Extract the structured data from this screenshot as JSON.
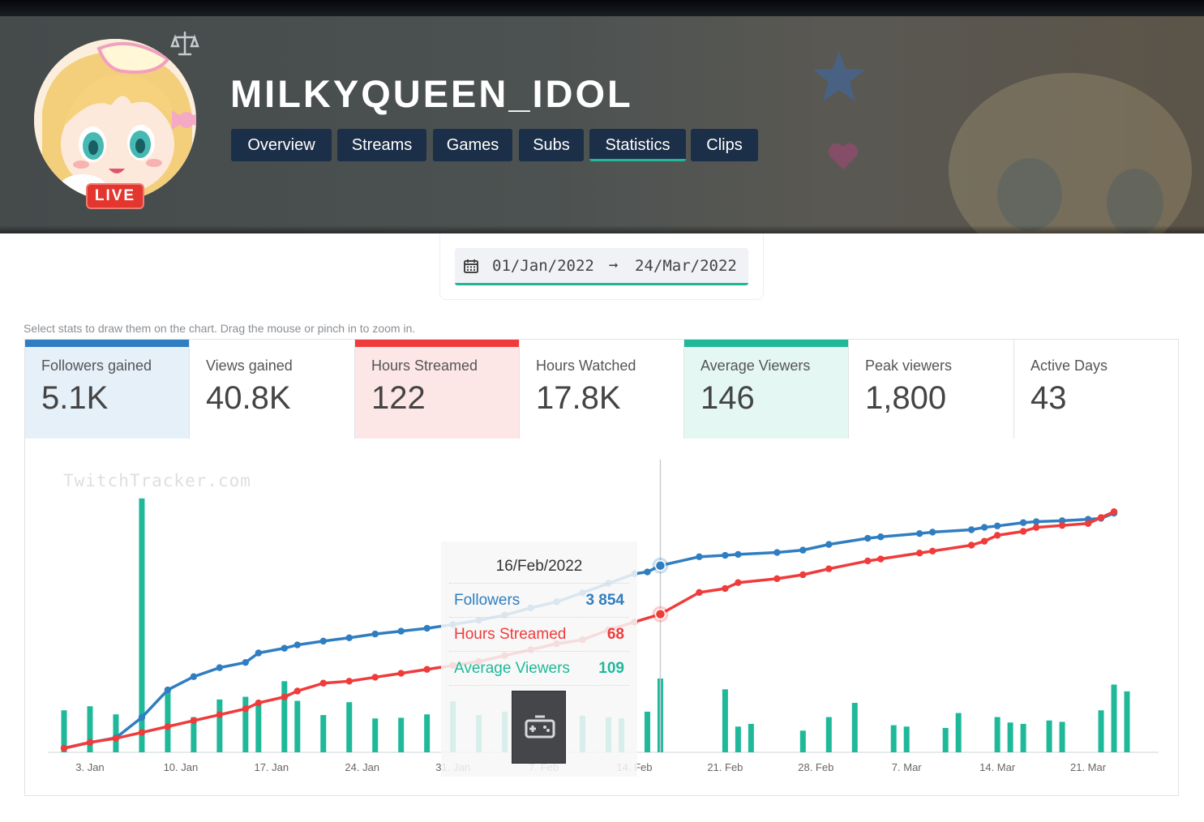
{
  "channel": {
    "name": "MILKYQUEEN_IDOL",
    "live_label": "LIVE"
  },
  "tabs": [
    {
      "label": "Overview",
      "active": false
    },
    {
      "label": "Streams",
      "active": false
    },
    {
      "label": "Games",
      "active": false
    },
    {
      "label": "Subs",
      "active": false
    },
    {
      "label": "Statistics",
      "active": true
    },
    {
      "label": "Clips",
      "active": false
    }
  ],
  "date_range": {
    "from": "01/Jan/2022",
    "arrow": "➞",
    "to": "24/Mar/2022"
  },
  "hint": "Select stats to draw them on the chart. Drag the mouse or pinch in to zoom in.",
  "stats": [
    {
      "label": "Followers gained",
      "value": "5.1K",
      "selected": true,
      "color": "#2f7ec1",
      "bg": "#e6f0f9"
    },
    {
      "label": "Views gained",
      "value": "40.8K",
      "selected": false,
      "color": "",
      "bg": "#ffffff"
    },
    {
      "label": "Hours Streamed",
      "value": "122",
      "selected": true,
      "color": "#f03b3b",
      "bg": "#fde6e6"
    },
    {
      "label": "Hours Watched",
      "value": "17.8K",
      "selected": false,
      "color": "",
      "bg": "#ffffff"
    },
    {
      "label": "Average Viewers",
      "value": "146",
      "selected": true,
      "color": "#1fb99a",
      "bg": "#e4f7f2"
    },
    {
      "label": "Peak viewers",
      "value": "1,800",
      "selected": false,
      "color": "",
      "bg": "#ffffff"
    },
    {
      "label": "Active Days",
      "value": "43",
      "selected": false,
      "color": "",
      "bg": "#ffffff"
    }
  ],
  "watermark": "TwitchTracker.com",
  "tooltip": {
    "date": "16/Feb/2022",
    "rows": [
      {
        "label": "Followers",
        "value": "3 854",
        "color": "#2f7ec1"
      },
      {
        "label": "Hours Streamed",
        "value": "68",
        "color": "#f03b3b"
      },
      {
        "label": "Average Viewers",
        "value": "109",
        "color": "#1fb99a"
      }
    ]
  },
  "colors": {
    "followers": "#2f7ec1",
    "hours": "#f03b3b",
    "viewers": "#1fb99a",
    "tab_bg": "#1c2f48",
    "accent": "#1fb49a"
  },
  "chart_data": {
    "type": "line+bar",
    "x_domain_days": [
      1,
      84
    ],
    "x_ticks": [
      {
        "day": 3,
        "label": "3. Jan"
      },
      {
        "day": 10,
        "label": "10. Jan"
      },
      {
        "day": 17,
        "label": "17. Jan"
      },
      {
        "day": 24,
        "label": "24. Jan"
      },
      {
        "day": 31,
        "label": "31. Jan"
      },
      {
        "day": 38,
        "label": "7. Feb"
      },
      {
        "day": 45,
        "label": "14. Feb"
      },
      {
        "day": 52,
        "label": "21. Feb"
      },
      {
        "day": 59,
        "label": "28. Feb"
      },
      {
        "day": 66,
        "label": "7. Mar"
      },
      {
        "day": 73,
        "label": "14. Mar"
      },
      {
        "day": 80,
        "label": "21. Mar"
      }
    ],
    "hover_day": 47,
    "series": [
      {
        "name": "Followers",
        "kind": "line",
        "color": "#2f7ec1",
        "ylim": [
          0,
          5200
        ],
        "points": [
          [
            1,
            0
          ],
          [
            3,
            120
          ],
          [
            5,
            220
          ],
          [
            7,
            650
          ],
          [
            9,
            1230
          ],
          [
            11,
            1510
          ],
          [
            13,
            1700
          ],
          [
            15,
            1810
          ],
          [
            16,
            2010
          ],
          [
            18,
            2110
          ],
          [
            19,
            2180
          ],
          [
            21,
            2260
          ],
          [
            23,
            2330
          ],
          [
            25,
            2410
          ],
          [
            27,
            2470
          ],
          [
            29,
            2530
          ],
          [
            31,
            2610
          ],
          [
            33,
            2700
          ],
          [
            35,
            2810
          ],
          [
            37,
            2960
          ],
          [
            39,
            3090
          ],
          [
            41,
            3280
          ],
          [
            43,
            3480
          ],
          [
            45,
            3680
          ],
          [
            46,
            3720
          ],
          [
            47,
            3854
          ],
          [
            50,
            4040
          ],
          [
            52,
            4070
          ],
          [
            53,
            4090
          ],
          [
            56,
            4130
          ],
          [
            58,
            4180
          ],
          [
            60,
            4300
          ],
          [
            63,
            4430
          ],
          [
            64,
            4460
          ],
          [
            67,
            4530
          ],
          [
            68,
            4560
          ],
          [
            71,
            4610
          ],
          [
            72,
            4660
          ],
          [
            73,
            4690
          ],
          [
            75,
            4760
          ],
          [
            76,
            4780
          ],
          [
            78,
            4800
          ],
          [
            80,
            4830
          ],
          [
            81,
            4850
          ],
          [
            82,
            4960
          ]
        ]
      },
      {
        "name": "Hours Streamed",
        "kind": "line",
        "color": "#f03b3b",
        "ylim": [
          0,
          125
        ],
        "points": [
          [
            1,
            0
          ],
          [
            3,
            3
          ],
          [
            5,
            5
          ],
          [
            7,
            8
          ],
          [
            9,
            11
          ],
          [
            11,
            14
          ],
          [
            13,
            17
          ],
          [
            15,
            20
          ],
          [
            16,
            23
          ],
          [
            18,
            26
          ],
          [
            19,
            29
          ],
          [
            21,
            33
          ],
          [
            23,
            34
          ],
          [
            25,
            36
          ],
          [
            27,
            38
          ],
          [
            29,
            40
          ],
          [
            31,
            42
          ],
          [
            33,
            44
          ],
          [
            35,
            47
          ],
          [
            37,
            50
          ],
          [
            39,
            53
          ],
          [
            41,
            55
          ],
          [
            43,
            60
          ],
          [
            45,
            64
          ],
          [
            47,
            68
          ],
          [
            50,
            79
          ],
          [
            52,
            81
          ],
          [
            53,
            84
          ],
          [
            56,
            86
          ],
          [
            58,
            88
          ],
          [
            60,
            91
          ],
          [
            63,
            95
          ],
          [
            64,
            96
          ],
          [
            67,
            99
          ],
          [
            68,
            100
          ],
          [
            71,
            103
          ],
          [
            72,
            105
          ],
          [
            73,
            108
          ],
          [
            75,
            110
          ],
          [
            76,
            112
          ],
          [
            78,
            113
          ],
          [
            80,
            114
          ],
          [
            81,
            117
          ],
          [
            82,
            120
          ]
        ]
      },
      {
        "name": "Average Viewers",
        "kind": "bar",
        "color": "#1fb99a",
        "ylim": [
          0,
          370
        ],
        "points": [
          [
            1,
            62
          ],
          [
            3,
            68
          ],
          [
            5,
            56
          ],
          [
            7,
            375
          ],
          [
            9,
            95
          ],
          [
            11,
            52
          ],
          [
            13,
            78
          ],
          [
            15,
            82
          ],
          [
            16,
            70
          ],
          [
            18,
            105
          ],
          [
            19,
            76
          ],
          [
            21,
            55
          ],
          [
            23,
            74
          ],
          [
            25,
            50
          ],
          [
            27,
            51
          ],
          [
            29,
            56
          ],
          [
            31,
            75
          ],
          [
            33,
            55
          ],
          [
            35,
            60
          ],
          [
            37,
            62
          ],
          [
            39,
            58
          ],
          [
            41,
            54
          ],
          [
            43,
            52
          ],
          [
            44,
            50
          ],
          [
            46,
            60
          ],
          [
            47,
            109
          ],
          [
            52,
            93
          ],
          [
            53,
            38
          ],
          [
            54,
            42
          ],
          [
            58,
            32
          ],
          [
            60,
            52
          ],
          [
            62,
            73
          ],
          [
            65,
            40
          ],
          [
            66,
            38
          ],
          [
            69,
            36
          ],
          [
            70,
            58
          ],
          [
            73,
            52
          ],
          [
            74,
            44
          ],
          [
            75,
            42
          ],
          [
            77,
            47
          ],
          [
            78,
            45
          ],
          [
            81,
            62
          ],
          [
            82,
            100
          ],
          [
            83,
            90
          ]
        ]
      }
    ]
  }
}
